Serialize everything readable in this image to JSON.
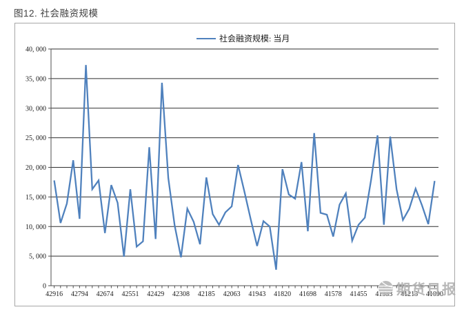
{
  "figure_title": "图12. 社会融资规模",
  "legend": {
    "label": "社会融资规模: 当月"
  },
  "watermark": {
    "text": "期货日报",
    "icon": "globe-icon"
  },
  "colors": {
    "series_line": "#4F81BD",
    "gridline": "#2e2e2e",
    "axis": "#4d4d4d",
    "tick_text": "#1a1a1a",
    "title_text": "#3f3f3f",
    "chart_border": "#a6a6a6",
    "watermark_gray": "#b3b3b3",
    "background": "#ffffff"
  },
  "chart_data": {
    "type": "line",
    "title": "图12. 社会融资规模",
    "series": [
      {
        "name": "社会融资规模: 当月",
        "color": "#4F81BD",
        "values": [
          17800,
          10600,
          13900,
          21200,
          11300,
          37300,
          16300,
          17800,
          8900,
          17000,
          14000,
          4900,
          16300,
          6600,
          7500,
          23400,
          7900,
          34300,
          18200,
          10200,
          4800,
          13000,
          10800,
          7000,
          18300,
          12100,
          10300,
          12400,
          13400,
          20400,
          15900,
          11200,
          6700,
          10900,
          10000,
          2700,
          19700,
          15400,
          14700,
          20900,
          9200,
          25800,
          12300,
          12000,
          8300,
          13700,
          15600,
          7600,
          10300,
          11500,
          18000,
          25400,
          10300,
          25200,
          16300,
          11100,
          13000,
          16400,
          13600,
          10400,
          17700
        ]
      }
    ],
    "n_points": 61,
    "x_tick_labels": [
      "42916",
      "42794",
      "42674",
      "42551",
      "42429",
      "42308",
      "42185",
      "42063",
      "41943",
      "41820",
      "41698",
      "41578",
      "41455",
      "41333",
      "41213",
      "41090"
    ],
    "x_label_every_n_points": 4,
    "y_ticks": [
      0,
      5000,
      10000,
      15000,
      20000,
      25000,
      30000,
      35000,
      40000
    ],
    "y_tick_labels": [
      "0",
      "5, 000",
      "10, 000",
      "15, 000",
      "20, 000",
      "25, 000",
      "30, 000",
      "35, 000",
      "40, 000"
    ],
    "ylim": [
      0,
      40000
    ],
    "grid": true,
    "legend_position": "top-center",
    "xlabel": "",
    "ylabel": ""
  }
}
